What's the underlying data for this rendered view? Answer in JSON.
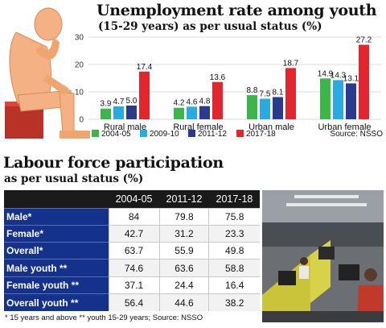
{
  "header": {
    "title": "Unemployment rate among youth",
    "subtitle": "(15-29 years) as per usual status (%)"
  },
  "chart_data": {
    "type": "bar",
    "title": "Unemployment rate among youth",
    "subtitle": "(15-29 years) as per usual status (%)",
    "categories": [
      "Rural male",
      "Rural female",
      "Urban male",
      "Urban female"
    ],
    "series": [
      {
        "name": "2004-05",
        "color": "#3cb54a",
        "values": [
          3.9,
          4.2,
          8.8,
          14.9
        ]
      },
      {
        "name": "2009-10",
        "color": "#29abe2",
        "values": [
          4.7,
          4.6,
          7.5,
          14.3
        ]
      },
      {
        "name": "2011-12",
        "color": "#283b8f",
        "values": [
          5.0,
          4.8,
          8.1,
          13.1
        ]
      },
      {
        "name": "2017-18",
        "color": "#e3262d",
        "values": [
          17.4,
          13.6,
          18.7,
          27.2
        ]
      }
    ],
    "yticks": [
      0,
      10,
      20,
      30
    ],
    "ylim": [
      0,
      30
    ],
    "grid": true,
    "legend_position": "bottom",
    "source": "Source: NSSO"
  },
  "table": {
    "title": "Labour force participation",
    "subtitle": "as per usual status (%)",
    "columns": [
      "",
      "2004-05",
      "2011-12",
      "2017-18"
    ],
    "rows": [
      {
        "label": "Male*",
        "values": [
          "84",
          "79.8",
          "75.8"
        ]
      },
      {
        "label": "Female*",
        "values": [
          "42.7",
          "31.2",
          "23.3"
        ]
      },
      {
        "label": "Overall*",
        "values": [
          "63.7",
          "55.9",
          "49.8"
        ]
      },
      {
        "label": "Male youth **",
        "values": [
          "74.6",
          "63.6",
          "58.8"
        ]
      },
      {
        "label": "Female youth **",
        "values": [
          "37.1",
          "24.4",
          "16.4"
        ]
      },
      {
        "label": "Overall youth **",
        "values": [
          "56.4",
          "44.6",
          "38.2"
        ]
      }
    ],
    "footnote": "* 15 years and above  ** youth 15-29 years;  Source: NSSO"
  },
  "colors": {
    "row_label_bg": "#14328c",
    "header_bg": "#1a1a1a",
    "figure_skin": "#f4b183",
    "chair": "#c0392b"
  }
}
